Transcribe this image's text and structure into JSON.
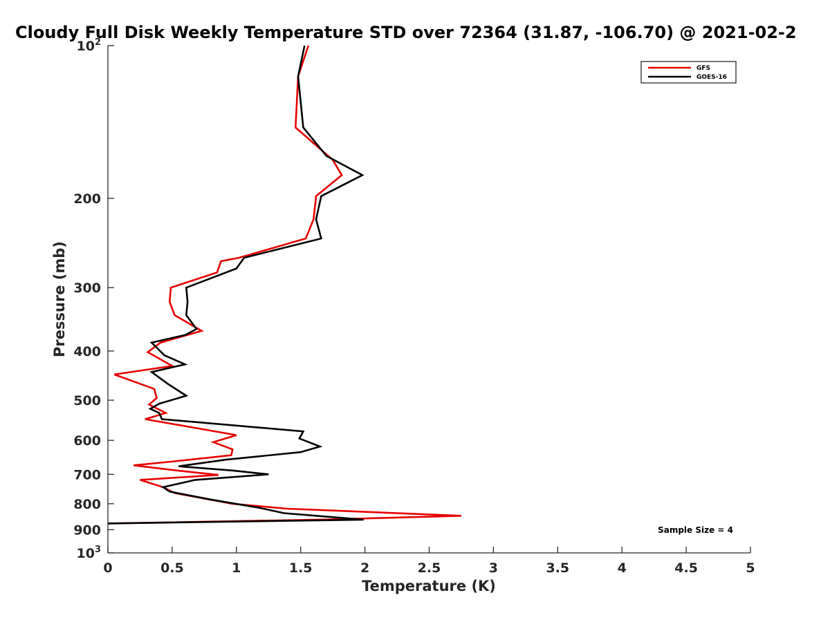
{
  "chart_data": {
    "type": "line",
    "title": "Cloudy Full Disk Weekly Temperature STD over 72364 (31.87, -106.70) @ 2021-02-2",
    "xlabel": "Temperature (K)",
    "ylabel": "Pressure (mb)",
    "xlim": [
      0,
      5
    ],
    "ylim": [
      100,
      1000
    ],
    "y_scale": "log",
    "y_reversed": true,
    "x_ticks": [
      "0",
      "0.5",
      "1",
      "1.5",
      "2",
      "2.5",
      "3",
      "3.5",
      "4",
      "4.5",
      "5"
    ],
    "y_ticks": [
      {
        "value": 100,
        "base": "10",
        "exp": "2"
      },
      {
        "value": 200,
        "label": "200"
      },
      {
        "value": 300,
        "label": "300"
      },
      {
        "value": 400,
        "label": "400"
      },
      {
        "value": 500,
        "label": "500"
      },
      {
        "value": 600,
        "label": "600"
      },
      {
        "value": 700,
        "label": "700"
      },
      {
        "value": 800,
        "label": "800"
      },
      {
        "value": 900,
        "label": "900"
      },
      {
        "value": 1000,
        "base": "10",
        "exp": "3"
      }
    ],
    "legend_position": "top-right",
    "annotation": "Sample Size = 4",
    "series": [
      {
        "name": "GFS",
        "color": "#e60000",
        "points": [
          [
            1.56,
            100
          ],
          [
            1.48,
            115
          ],
          [
            1.46,
            145
          ],
          [
            1.75,
            168
          ],
          [
            1.82,
            180
          ],
          [
            1.62,
            198
          ],
          [
            1.6,
            220
          ],
          [
            1.54,
            240
          ],
          [
            1.02,
            262
          ],
          [
            0.88,
            266
          ],
          [
            0.85,
            280
          ],
          [
            0.49,
            300
          ],
          [
            0.48,
            320
          ],
          [
            0.52,
            340
          ],
          [
            0.73,
            365
          ],
          [
            0.41,
            385
          ],
          [
            0.31,
            402
          ],
          [
            0.5,
            428
          ],
          [
            0.05,
            445
          ],
          [
            0.36,
            475
          ],
          [
            0.38,
            495
          ],
          [
            0.32,
            510
          ],
          [
            0.45,
            530
          ],
          [
            0.29,
            545
          ],
          [
            1.0,
            586
          ],
          [
            0.82,
            605
          ],
          [
            0.97,
            625
          ],
          [
            0.96,
            642
          ],
          [
            0.52,
            660
          ],
          [
            0.2,
            672
          ],
          [
            0.58,
            690
          ],
          [
            0.86,
            702
          ],
          [
            0.25,
            718
          ],
          [
            0.43,
            742
          ],
          [
            0.52,
            762
          ],
          [
            0.97,
            800
          ],
          [
            1.39,
            818
          ],
          [
            2.75,
            845
          ],
          [
            1.65,
            860
          ],
          [
            0,
            875
          ]
        ]
      },
      {
        "name": "GOES-16",
        "color": "#000000",
        "points": [
          [
            1.53,
            100
          ],
          [
            1.48,
            115
          ],
          [
            1.52,
            145
          ],
          [
            1.7,
            165
          ],
          [
            1.98,
            180
          ],
          [
            1.66,
            198
          ],
          [
            1.62,
            220
          ],
          [
            1.66,
            240
          ],
          [
            1.06,
            262
          ],
          [
            1.0,
            275
          ],
          [
            0.61,
            300
          ],
          [
            0.62,
            320
          ],
          [
            0.61,
            340
          ],
          [
            0.69,
            362
          ],
          [
            0.6,
            372
          ],
          [
            0.34,
            385
          ],
          [
            0.44,
            408
          ],
          [
            0.6,
            425
          ],
          [
            0.34,
            440
          ],
          [
            0.47,
            465
          ],
          [
            0.61,
            490
          ],
          [
            0.4,
            508
          ],
          [
            0.33,
            520
          ],
          [
            0.4,
            530
          ],
          [
            0.42,
            545
          ],
          [
            1.52,
            576
          ],
          [
            1.49,
            595
          ],
          [
            1.65,
            617
          ],
          [
            1.5,
            633
          ],
          [
            0.92,
            655
          ],
          [
            0.55,
            675
          ],
          [
            0.97,
            688
          ],
          [
            1.25,
            700
          ],
          [
            0.68,
            718
          ],
          [
            0.43,
            742
          ],
          [
            0.48,
            757
          ],
          [
            0.8,
            785
          ],
          [
            1.18,
            815
          ],
          [
            1.37,
            835
          ],
          [
            1.99,
            860
          ],
          [
            0,
            875
          ]
        ]
      }
    ]
  }
}
